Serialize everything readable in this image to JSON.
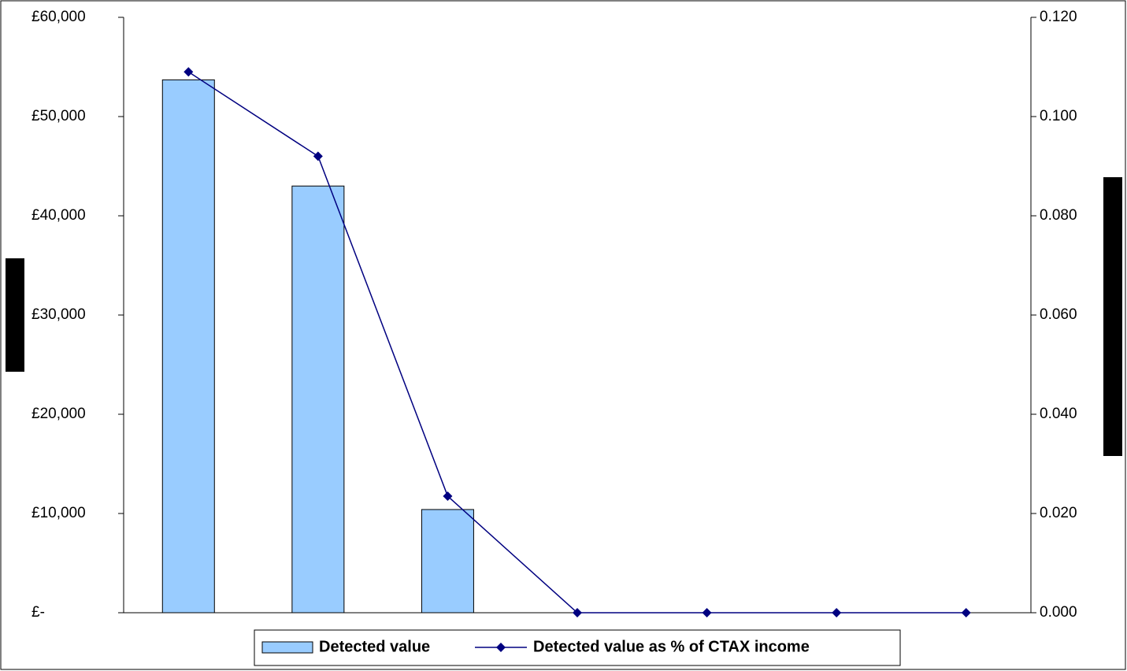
{
  "chart_data": {
    "type": "bar",
    "categories": [
      null,
      null,
      null,
      null,
      null,
      null,
      null
    ],
    "series": [
      {
        "name": "Detected value",
        "type": "bar",
        "color": "#99ccff",
        "values": [
          53700,
          43000,
          10400,
          0,
          0,
          0,
          0
        ]
      },
      {
        "name": "Detected value as % of CTAX income",
        "type": "line",
        "axis": "y2",
        "color": "#000080",
        "values": [
          0.109,
          0.092,
          0.0235,
          0,
          0,
          0,
          0
        ]
      }
    ],
    "ylim": [
      0,
      60000
    ],
    "yticks": [
      {
        "value": 0,
        "label": "£-"
      },
      {
        "value": 10000,
        "label": "£10,000"
      },
      {
        "value": 20000,
        "label": "£20,000"
      },
      {
        "value": 30000,
        "label": "£30,000"
      },
      {
        "value": 40000,
        "label": "£40,000"
      },
      {
        "value": 50000,
        "label": "£50,000"
      },
      {
        "value": 60000,
        "label": "£60,000"
      }
    ],
    "y2lim": [
      0,
      0.12
    ],
    "y2ticks": [
      {
        "value": 0,
        "label": "0.000"
      },
      {
        "value": 0.02,
        "label": "0.020"
      },
      {
        "value": 0.04,
        "label": "0.040"
      },
      {
        "value": 0.06,
        "label": "0.060"
      },
      {
        "value": 0.08,
        "label": "0.080"
      },
      {
        "value": 0.1,
        "label": "0.100"
      },
      {
        "value": 0.12,
        "label": "0.120"
      }
    ],
    "legend": "bottom"
  }
}
